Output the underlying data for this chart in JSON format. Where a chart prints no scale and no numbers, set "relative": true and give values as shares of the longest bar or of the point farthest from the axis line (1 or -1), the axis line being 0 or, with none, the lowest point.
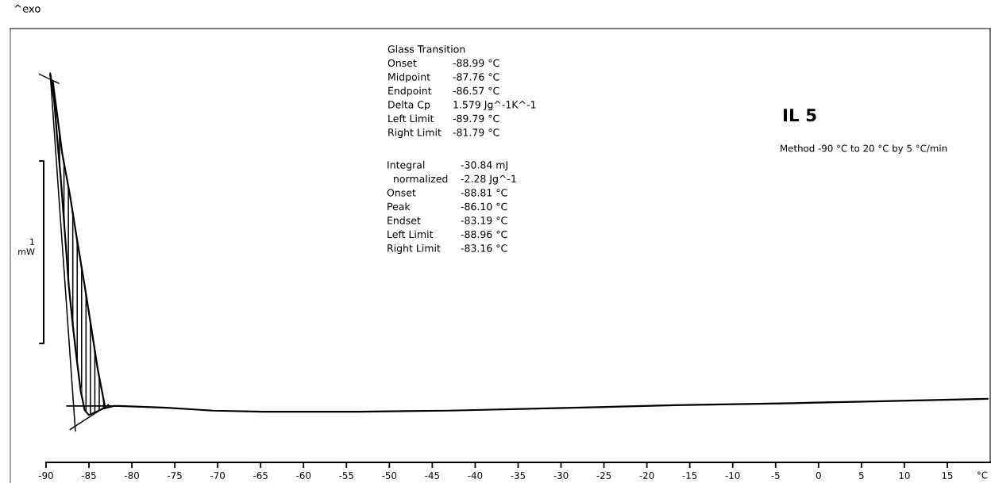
{
  "chart_data": {
    "type": "line",
    "title": "IL 5",
    "subtitle": "Method -90 °C to 20 °C by 5 °C/min",
    "xlabel": "°C",
    "annotations": [
      "^exo",
      "Glass Transition\nOnset\t-88.99 °C\nMidpoint\t-87.76 °C\nEndpoint\t-86.57 °C\nDelta Cp\t1.579 Jg^-1K^-1\nLeft Limit\t-89.79 °C\nRight Limit\t-81.79 °C",
      "Integral\t-30.84 mJ\n  normalized\t-2.28 Jg^-1\nOnset\t-88.81 °C\nPeak\t-86.10 °C\nEndset\t-83.19 °C\nLeft Limit\t-88.96 °C\nRight Limit\t-83.16 °C",
      "1\nmW"
    ],
    "relative": true,
    "tick_labels": "x",
    "grid": false,
    "xlim": [
      -94.16,
      20.0
    ],
    "xticks": [
      -90,
      -85,
      -80,
      -75,
      -70,
      -65,
      -60,
      -55,
      -50,
      -45,
      -40,
      -35,
      -30,
      -25,
      -20,
      -15,
      -10,
      -5,
      0,
      5,
      10,
      15
    ],
    "series": [
      {
        "color": "#000000",
        "x": [
          -89.51,
          -89.05,
          -88.73,
          -88.27,
          -87.81,
          -87.35,
          -86.88,
          -86.42,
          -85.96,
          -85.5,
          -85.03,
          -84.26,
          -83.34,
          -82.14,
          -81.49,
          -75.85,
          -70.57,
          -64.65,
          -53.74,
          -43.01,
          -30.61,
          -16.73,
          -2.86,
          6.39,
          19.71
        ],
        "values": [
          0.997,
          0.923,
          0.827,
          0.702,
          0.555,
          0.406,
          0.296,
          0.2,
          0.112,
          0.059,
          0.045,
          0.052,
          0.063,
          0.07,
          0.07,
          0.065,
          0.057,
          0.054,
          0.054,
          0.057,
          0.064,
          0.072,
          0.078,
          0.083,
          0.09
        ]
      },
      {
        "color": "#000000",
        "x": [
          -89.2,
          -88.12,
          -87.2,
          -86.42,
          -85.5,
          -84.73,
          -83.96,
          -83.18
        ],
        "values": [
          0.975,
          0.776,
          0.657,
          0.539,
          0.406,
          0.289,
          0.17,
          0.074
        ],
        "lower": [
          0.947,
          0.654,
          0.371,
          0.2,
          0.059,
          0.048,
          0.056,
          0.064
        ],
        "upper": [
          0.975,
          0.776,
          0.657,
          0.539,
          0.406,
          0.289,
          0.17,
          0.074
        ]
      },
      {
        "color": "#000000",
        "x": [
          -89.51,
          -86.58
        ],
        "values": [
          0.997,
          0.0
        ]
      },
      {
        "color": "#000000",
        "x": [
          -89.51,
          -89.29
        ],
        "values": [
          1.0,
          0.967
        ]
      },
      {
        "color": "#000000",
        "x": [
          -90.8,
          -88.52
        ],
        "values": [
          0.997,
          0.971
        ]
      },
      {
        "color": "#000000",
        "x": [
          -87.2,
          -82.72
        ],
        "values": [
          0.004,
          0.074
        ]
      },
      {
        "color": "#000000",
        "x": [
          -87.59,
          -81.03
        ],
        "values": [
          0.07,
          0.07
        ]
      }
    ]
  }
}
